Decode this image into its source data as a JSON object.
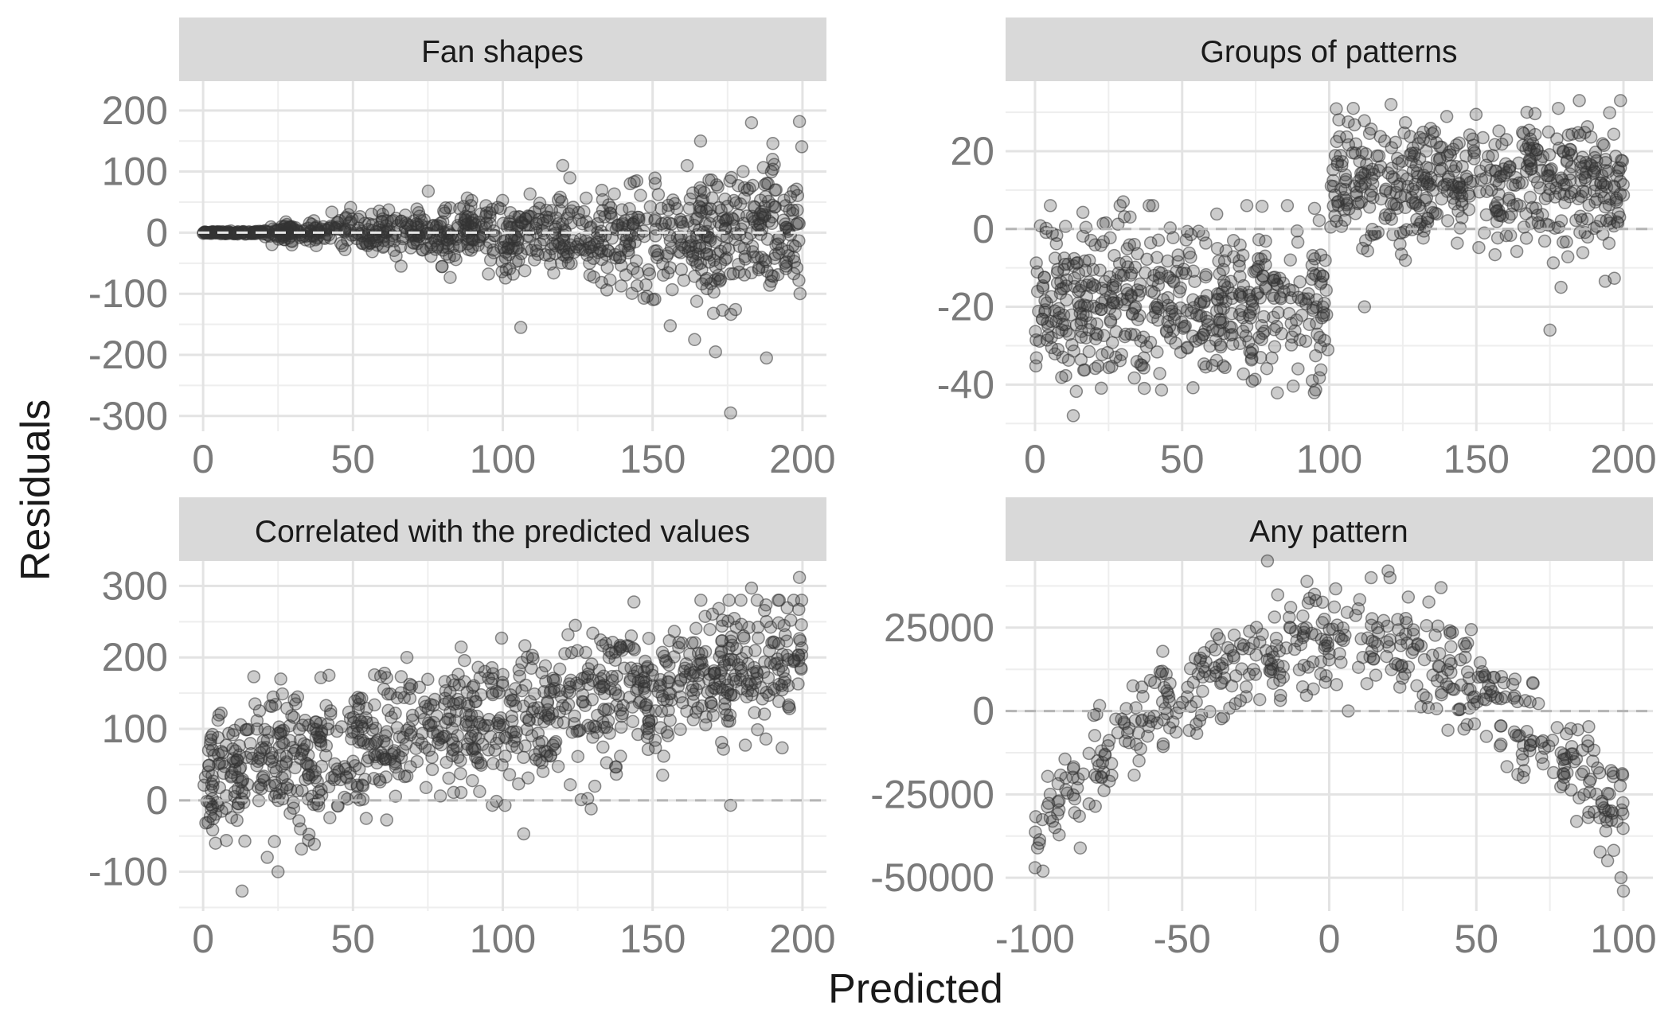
{
  "axes": {
    "xlabel": "Predicted",
    "ylabel": "Residuals"
  },
  "colors": {
    "point": "#333333",
    "strip_bg": "#d9d9d9",
    "grid_major": "#e3e3e3",
    "grid_minor": "#eeeeee",
    "zero_line": "#b5b5b5"
  },
  "chart_data": [
    {
      "type": "scatter",
      "title": "Fan shapes",
      "xlim": [
        -8,
        208
      ],
      "ylim": [
        -325,
        248
      ],
      "xticks": [
        0,
        50,
        100,
        150,
        200
      ],
      "xtick_labels": [
        "0",
        "50",
        "100",
        "150",
        "200"
      ],
      "yticks": [
        200,
        100,
        0,
        -100,
        -200,
        -300
      ],
      "ytick_labels": [
        "200",
        "100",
        "0",
        "-100",
        "-200",
        "-300"
      ],
      "reference_line": 0,
      "pattern": "Residuals near 0 for predicted 0–20, spread widening with predicted value: about ±50 around 50, ±100 around 150, ±150 near 200",
      "n_points": 1000,
      "outliers": [
        [
          106,
          -155
        ],
        [
          171,
          -195
        ],
        [
          176,
          -295
        ],
        [
          188,
          -205
        ],
        [
          164,
          -175
        ],
        [
          166,
          150
        ],
        [
          183,
          180
        ],
        [
          199,
          182
        ],
        [
          120,
          110
        ],
        [
          190,
          120
        ]
      ]
    },
    {
      "type": "scatter",
      "title": "Groups of patterns",
      "xlim": [
        -10,
        210
      ],
      "ylim": [
        -52,
        38
      ],
      "xticks": [
        0,
        50,
        100,
        150,
        200
      ],
      "xtick_labels": [
        "0",
        "50",
        "100",
        "150",
        "200"
      ],
      "yticks": [
        20,
        0,
        -20,
        -40
      ],
      "ytick_labels": [
        "20",
        "0",
        "-20",
        "-40"
      ],
      "reference_line": 0,
      "pattern": "Two clusters: predicted 0–100 residuals about -20 (range -47 to 7); predicted 100–200 residuals about +12 (range -15 to 33)",
      "n_points": 1000,
      "outliers": [
        [
          175,
          -26
        ],
        [
          112,
          -20
        ],
        [
          13,
          -48
        ],
        [
          121,
          32
        ],
        [
          185,
          33
        ],
        [
          199,
          33
        ],
        [
          30,
          7
        ],
        [
          72,
          6
        ]
      ]
    },
    {
      "type": "scatter",
      "title": "Correlated with the predicted values",
      "xlim": [
        -8,
        208
      ],
      "ylim": [
        -155,
        335
      ],
      "xticks": [
        0,
        50,
        100,
        150,
        200
      ],
      "xtick_labels": [
        "0",
        "50",
        "100",
        "150",
        "200"
      ],
      "yticks": [
        300,
        200,
        100,
        0,
        -100
      ],
      "ytick_labels": [
        "300",
        "200",
        "100",
        "0",
        "-100"
      ],
      "reference_line": 0,
      "pattern": "Residuals increase linearly with predicted value: mean about 30 at predicted 0 to about 200 at predicted 200, spread about ±70",
      "n_points": 1000,
      "outliers": [
        [
          13,
          -127
        ],
        [
          25,
          -100
        ],
        [
          107,
          -47
        ],
        [
          176,
          -7
        ],
        [
          199,
          312
        ],
        [
          183,
          297
        ],
        [
          42,
          175
        ],
        [
          68,
          200
        ]
      ]
    },
    {
      "type": "scatter",
      "title": "Any pattern",
      "xlim": [
        -110,
        110
      ],
      "ylim": [
        -60000,
        45000
      ],
      "xticks": [
        -100,
        -50,
        0,
        50,
        100
      ],
      "xtick_labels": [
        "-100",
        "-50",
        "0",
        "50",
        "100"
      ],
      "yticks": [
        25000,
        0,
        -25000,
        -50000
      ],
      "ytick_labels": [
        "25000",
        "0",
        "-25000",
        "-50000"
      ],
      "reference_line": 0,
      "pattern": "Inverted parabola: residual about 20000 - 0.00125*(...); peak about 20000 at predicted 0, about -40000 at predicted ±100, noise about ±10000",
      "n_points": 500,
      "outliers": [
        [
          -21,
          45000
        ],
        [
          20,
          42000
        ],
        [
          -100,
          -47000
        ],
        [
          100,
          -54000
        ],
        [
          -5,
          35000
        ],
        [
          38,
          37000
        ]
      ]
    }
  ]
}
